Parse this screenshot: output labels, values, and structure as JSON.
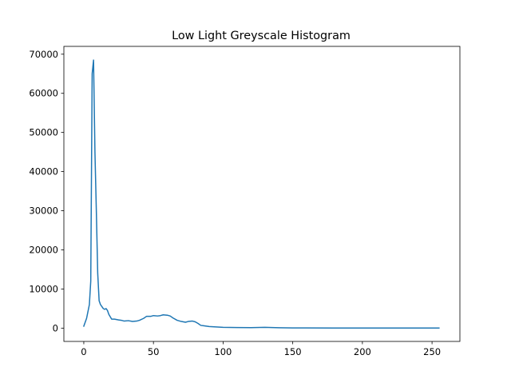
{
  "chart_data": {
    "type": "line",
    "title": "Low Light Greyscale Histogram",
    "xlabel": "",
    "ylabel": "",
    "xlim": [
      -14.3,
      270
    ],
    "ylim": [
      -3400,
      72000
    ],
    "x_ticks": [
      0,
      50,
      100,
      150,
      200,
      250
    ],
    "y_ticks": [
      0,
      10000,
      20000,
      30000,
      40000,
      50000,
      60000,
      70000
    ],
    "grid": false,
    "legend": "none",
    "series": [
      {
        "color": "#1f77b4",
        "points": [
          [
            0,
            500
          ],
          [
            2,
            2500
          ],
          [
            4,
            6000
          ],
          [
            5,
            12000
          ],
          [
            6,
            65000
          ],
          [
            7,
            68500
          ],
          [
            8,
            45000
          ],
          [
            9,
            30000
          ],
          [
            10,
            14000
          ],
          [
            11,
            7000
          ],
          [
            12,
            6000
          ],
          [
            14,
            5000
          ],
          [
            15,
            4800
          ],
          [
            16,
            5000
          ],
          [
            17,
            4500
          ],
          [
            18,
            3500
          ],
          [
            20,
            2300
          ],
          [
            22,
            2300
          ],
          [
            25,
            2100
          ],
          [
            27,
            2000
          ],
          [
            29,
            1800
          ],
          [
            32,
            1900
          ],
          [
            35,
            1700
          ],
          [
            38,
            1800
          ],
          [
            40,
            2000
          ],
          [
            43,
            2500
          ],
          [
            45,
            3000
          ],
          [
            48,
            3000
          ],
          [
            50,
            3200
          ],
          [
            53,
            3100
          ],
          [
            55,
            3200
          ],
          [
            57,
            3400
          ],
          [
            60,
            3300
          ],
          [
            62,
            3100
          ],
          [
            64,
            2600
          ],
          [
            67,
            2000
          ],
          [
            70,
            1700
          ],
          [
            73,
            1500
          ],
          [
            75,
            1700
          ],
          [
            78,
            1800
          ],
          [
            80,
            1600
          ],
          [
            82,
            1200
          ],
          [
            84,
            700
          ],
          [
            86,
            600
          ],
          [
            88,
            500
          ],
          [
            90,
            400
          ],
          [
            95,
            300
          ],
          [
            100,
            200
          ],
          [
            110,
            150
          ],
          [
            120,
            120
          ],
          [
            130,
            200
          ],
          [
            135,
            150
          ],
          [
            140,
            100
          ],
          [
            150,
            60
          ],
          [
            160,
            40
          ],
          [
            180,
            30
          ],
          [
            200,
            25
          ],
          [
            220,
            20
          ],
          [
            240,
            20
          ],
          [
            255,
            20
          ]
        ]
      }
    ]
  }
}
